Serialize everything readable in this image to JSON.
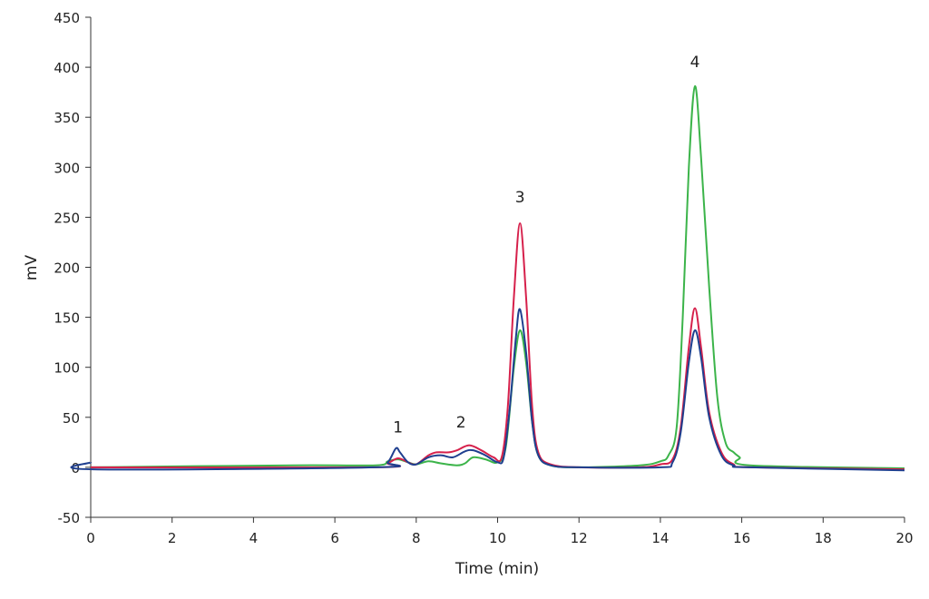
{
  "chart_data": {
    "type": "line",
    "title": "",
    "xlabel": "Time (min)",
    "ylabel": "mV",
    "xlim": [
      0,
      20
    ],
    "ylim": [
      -50,
      450
    ],
    "xticks": [
      0,
      2,
      4,
      6,
      8,
      10,
      12,
      14,
      16,
      18,
      20
    ],
    "yticks": [
      -50,
      0,
      50,
      100,
      150,
      200,
      250,
      300,
      350,
      400,
      450
    ],
    "grid": false,
    "legend": "none",
    "annotations": [
      {
        "text": "1",
        "x": 7.55,
        "y": 35
      },
      {
        "text": "2",
        "x": 9.1,
        "y": 40
      },
      {
        "text": "3",
        "x": 10.55,
        "y": 265
      },
      {
        "text": "4",
        "x": 14.85,
        "y": 400
      }
    ],
    "series": [
      {
        "color": "#3cb44a",
        "points": [
          [
            0,
            0
          ],
          [
            5,
            2
          ],
          [
            7,
            2
          ],
          [
            7.3,
            6
          ],
          [
            7.55,
            8
          ],
          [
            7.8,
            5
          ],
          [
            8.0,
            3
          ],
          [
            8.3,
            6
          ],
          [
            8.6,
            4
          ],
          [
            9.0,
            2
          ],
          [
            9.2,
            4
          ],
          [
            9.4,
            10
          ],
          [
            9.7,
            8
          ],
          [
            10.0,
            5
          ],
          [
            10.2,
            20
          ],
          [
            10.4,
            100
          ],
          [
            10.55,
            137
          ],
          [
            10.7,
            105
          ],
          [
            10.85,
            45
          ],
          [
            11.0,
            12
          ],
          [
            11.3,
            2
          ],
          [
            12,
            0
          ],
          [
            13.5,
            2
          ],
          [
            14.0,
            6
          ],
          [
            14.2,
            12
          ],
          [
            14.4,
            40
          ],
          [
            14.55,
            150
          ],
          [
            14.7,
            300
          ],
          [
            14.85,
            381
          ],
          [
            15.0,
            310
          ],
          [
            15.2,
            180
          ],
          [
            15.4,
            70
          ],
          [
            15.6,
            25
          ],
          [
            15.8,
            15
          ],
          [
            15.95,
            10
          ],
          [
            16.2,
            2
          ],
          [
            20,
            -1
          ]
        ]
      },
      {
        "color": "#d6204b",
        "points": [
          [
            0,
            0
          ],
          [
            7,
            0
          ],
          [
            7.3,
            4
          ],
          [
            7.55,
            9
          ],
          [
            7.8,
            5
          ],
          [
            8.0,
            3
          ],
          [
            8.3,
            12
          ],
          [
            8.5,
            15
          ],
          [
            8.8,
            15
          ],
          [
            9.0,
            17
          ],
          [
            9.3,
            22
          ],
          [
            9.6,
            17
          ],
          [
            9.9,
            10
          ],
          [
            10.1,
            10
          ],
          [
            10.25,
            60
          ],
          [
            10.4,
            170
          ],
          [
            10.55,
            244
          ],
          [
            10.7,
            170
          ],
          [
            10.85,
            60
          ],
          [
            11.0,
            15
          ],
          [
            11.3,
            3
          ],
          [
            12,
            0
          ],
          [
            13.5,
            0
          ],
          [
            14.0,
            3
          ],
          [
            14.3,
            8
          ],
          [
            14.5,
            40
          ],
          [
            14.7,
            120
          ],
          [
            14.85,
            159
          ],
          [
            15.0,
            120
          ],
          [
            15.2,
            55
          ],
          [
            15.5,
            15
          ],
          [
            15.8,
            3
          ],
          [
            16.2,
            0
          ],
          [
            20,
            -2
          ]
        ]
      },
      {
        "color": "#1f3f8f",
        "points": [
          [
            0,
            5
          ],
          [
            0.05,
            -2
          ],
          [
            7,
            0
          ],
          [
            7.3,
            5
          ],
          [
            7.5,
            19
          ],
          [
            7.6,
            15
          ],
          [
            7.8,
            5
          ],
          [
            8.0,
            3
          ],
          [
            8.3,
            10
          ],
          [
            8.6,
            12
          ],
          [
            8.9,
            10
          ],
          [
            9.2,
            16
          ],
          [
            9.4,
            17
          ],
          [
            9.7,
            12
          ],
          [
            10.0,
            5
          ],
          [
            10.15,
            10
          ],
          [
            10.3,
            60
          ],
          [
            10.45,
            130
          ],
          [
            10.55,
            158
          ],
          [
            10.7,
            115
          ],
          [
            10.85,
            45
          ],
          [
            11.0,
            12
          ],
          [
            11.3,
            2
          ],
          [
            12,
            0
          ],
          [
            14,
            0
          ],
          [
            14.3,
            5
          ],
          [
            14.5,
            35
          ],
          [
            14.7,
            105
          ],
          [
            14.85,
            137
          ],
          [
            15.0,
            110
          ],
          [
            15.2,
            50
          ],
          [
            15.5,
            12
          ],
          [
            15.8,
            2
          ],
          [
            16.2,
            0
          ],
          [
            20,
            -3
          ]
        ]
      }
    ]
  }
}
